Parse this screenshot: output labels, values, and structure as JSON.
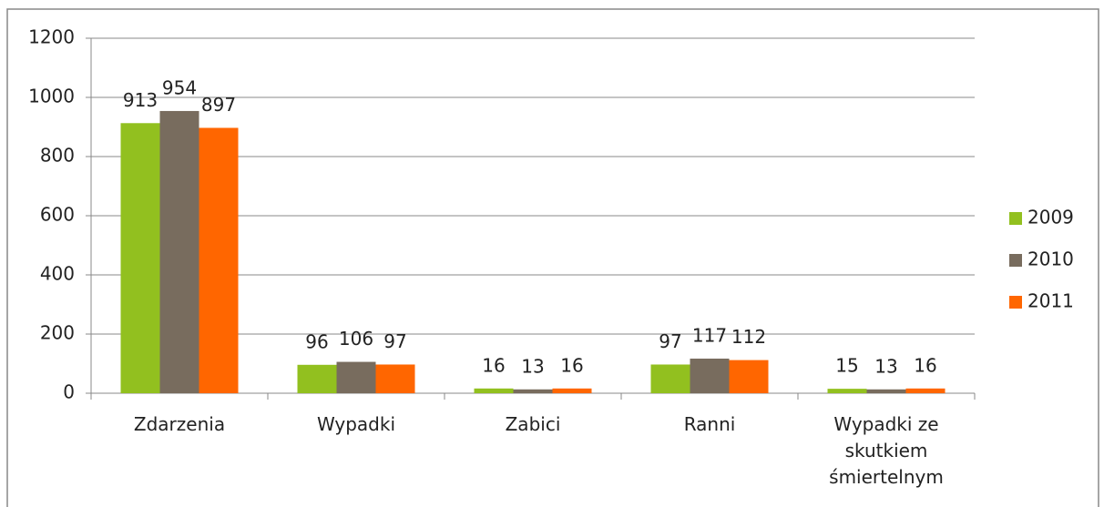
{
  "chart_data": {
    "type": "bar",
    "categories": [
      "Zdarzenia",
      "Wypadki",
      "Zabici",
      "Ranni",
      "Wypadki ze skutkiem śmiertelnym"
    ],
    "series": [
      {
        "name": "2009",
        "color": "#92c01f",
        "values": [
          913,
          96,
          16,
          97,
          15
        ]
      },
      {
        "name": "2010",
        "color": "#786c5e",
        "values": [
          954,
          106,
          13,
          117,
          13
        ]
      },
      {
        "name": "2011",
        "color": "#ff6600",
        "values": [
          897,
          97,
          16,
          112,
          16
        ]
      }
    ],
    "ylim": [
      0,
      1200
    ],
    "yticks": [
      0,
      200,
      400,
      600,
      800,
      1000,
      1200
    ],
    "grid": true,
    "legend": "right"
  }
}
